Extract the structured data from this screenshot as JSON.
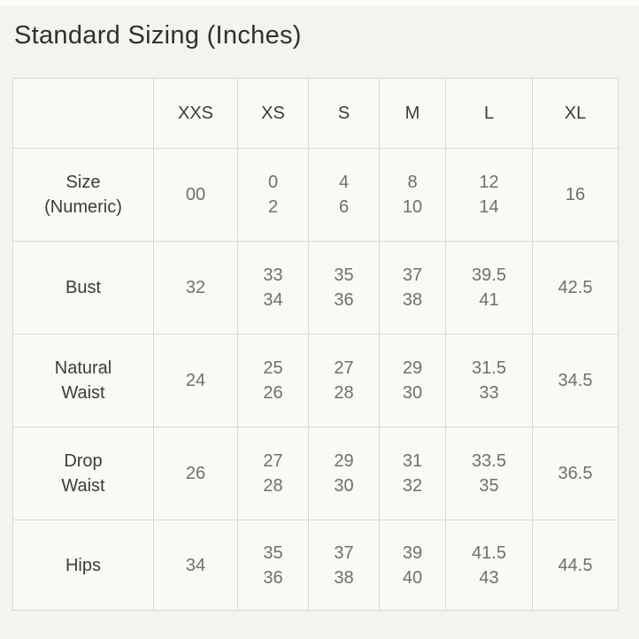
{
  "title": "Standard Sizing (Inches)",
  "colors": {
    "page_bg": "#f4f3ed",
    "cell_bg": "#faf9f5",
    "border": "#d9d8d2",
    "title_text": "#303030",
    "header_text": "#3c3c3c",
    "value_text": "#6f6f6f"
  },
  "chart_data": {
    "type": "table",
    "title": "Standard Sizing (Inches)",
    "columns": [
      "XXS",
      "XS",
      "S",
      "M",
      "L",
      "XL"
    ],
    "corner_label": "",
    "rows": [
      {
        "label": [
          "Size",
          "(Numeric)"
        ],
        "values": [
          [
            "00"
          ],
          [
            "0",
            "2"
          ],
          [
            "4",
            "6"
          ],
          [
            "8",
            "10"
          ],
          [
            "12",
            "14"
          ],
          [
            "16"
          ]
        ]
      },
      {
        "label": [
          "Bust"
        ],
        "values": [
          [
            "32"
          ],
          [
            "33",
            "34"
          ],
          [
            "35",
            "36"
          ],
          [
            "37",
            "38"
          ],
          [
            "39.5",
            "41"
          ],
          [
            "42.5"
          ]
        ]
      },
      {
        "label": [
          "Natural",
          "Waist"
        ],
        "values": [
          [
            "24"
          ],
          [
            "25",
            "26"
          ],
          [
            "27",
            "28"
          ],
          [
            "29",
            "30"
          ],
          [
            "31.5",
            "33"
          ],
          [
            "34.5"
          ]
        ]
      },
      {
        "label": [
          "Drop",
          "Waist"
        ],
        "values": [
          [
            "26"
          ],
          [
            "27",
            "28"
          ],
          [
            "29",
            "30"
          ],
          [
            "31",
            "32"
          ],
          [
            "33.5",
            "35"
          ],
          [
            "36.5"
          ]
        ]
      },
      {
        "label": [
          "Hips"
        ],
        "values": [
          [
            "34"
          ],
          [
            "35",
            "36"
          ],
          [
            "37",
            "38"
          ],
          [
            "39",
            "40"
          ],
          [
            "41.5",
            "43"
          ],
          [
            "44.5"
          ]
        ]
      }
    ]
  }
}
